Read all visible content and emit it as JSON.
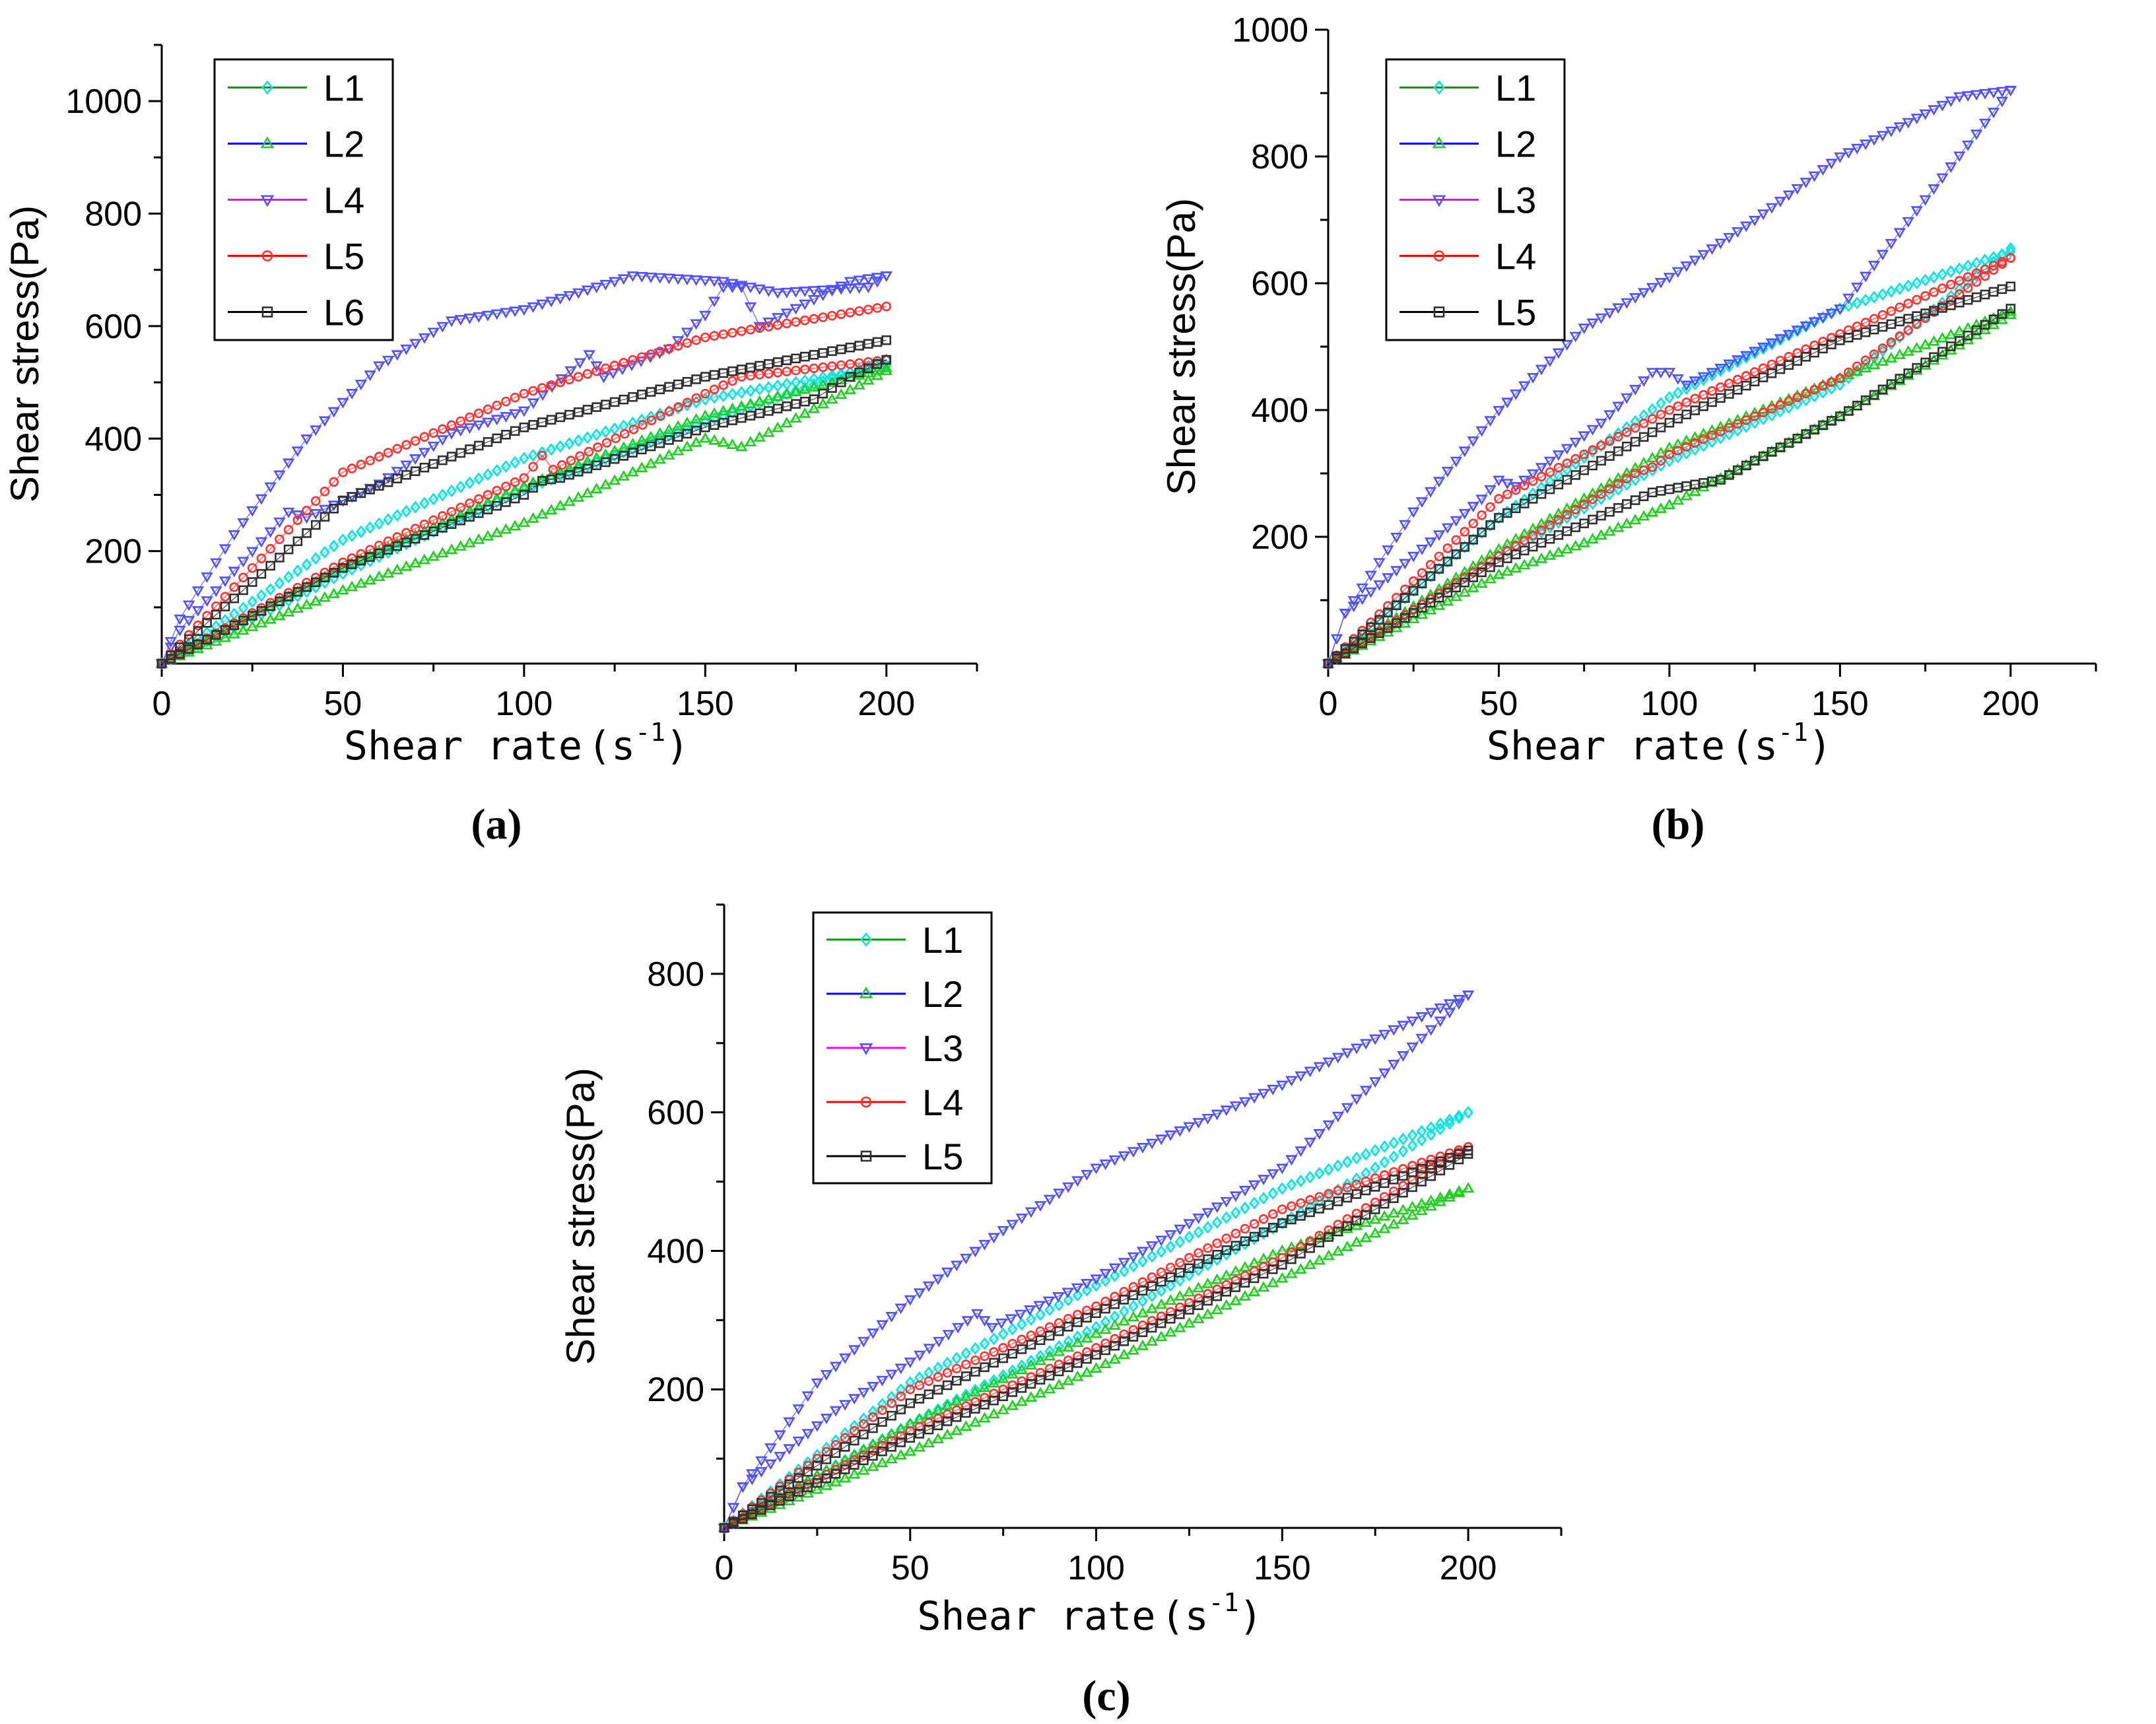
{
  "chart_data": [
    {
      "type": "line",
      "panel_label": "(a)",
      "xlabel": "Shear rate",
      "xlabel_unit": "(s",
      "xlabel_sup": "-1",
      "xlabel_close": ")",
      "ylabel": "Shear stress(Pa)",
      "xlim": [
        0,
        225
      ],
      "ylim": [
        0,
        1100
      ],
      "xticks": [
        0,
        50,
        100,
        150,
        200
      ],
      "yticks": [
        200,
        400,
        600,
        800,
        1000
      ],
      "x_tick_labels": [
        "0",
        "50",
        "100",
        "150",
        "200"
      ],
      "y_tick_labels": [
        "200",
        "400",
        "600",
        "800",
        "1000"
      ],
      "legend": [
        "L1",
        "L2",
        "L4",
        "L5",
        "L6"
      ],
      "series": [
        {
          "name": "L1",
          "color": "#00e5e5",
          "marker": "diamond",
          "line_color": "#00a000",
          "up": [
            [
              0,
              0
            ],
            [
              50,
              160
            ],
            [
              100,
              310
            ],
            [
              150,
              430
            ],
            [
              200,
              540
            ]
          ],
          "down": [
            [
              200,
              530
            ],
            [
              150,
              470
            ],
            [
              100,
              365
            ],
            [
              50,
              220
            ],
            [
              0,
              0
            ]
          ]
        },
        {
          "name": "L2",
          "color": "#1fcf1f",
          "marker": "triangle-up",
          "line_color": "#0000ff",
          "up": [
            [
              0,
              0
            ],
            [
              50,
              130
            ],
            [
              100,
              250
            ],
            [
              105,
              265
            ],
            [
              150,
              400
            ],
            [
              160,
              385
            ],
            [
              200,
              520
            ]
          ],
          "down": [
            [
              200,
              525
            ],
            [
              150,
              440
            ],
            [
              100,
              315
            ],
            [
              50,
              170
            ],
            [
              0,
              0
            ]
          ]
        },
        {
          "name": "L4",
          "color": "#5050ff",
          "marker": "triangle-down",
          "line_color": "#ff00ff",
          "up": [
            [
              0,
              0
            ],
            [
              5,
              60
            ],
            [
              35,
              270
            ],
            [
              40,
              260
            ],
            [
              60,
              320
            ],
            [
              80,
              410
            ],
            [
              85,
              420
            ],
            [
              95,
              440
            ],
            [
              100,
              450
            ],
            [
              118,
              550
            ],
            [
              122,
              510
            ],
            [
              140,
              560
            ],
            [
              150,
              620
            ],
            [
              155,
              670
            ],
            [
              160,
              670
            ],
            [
              165,
              600
            ],
            [
              190,
              680
            ],
            [
              200,
              690
            ]
          ],
          "down": [
            [
              200,
              690
            ],
            [
              195,
              670
            ],
            [
              170,
              660
            ],
            [
              155,
              680
            ],
            [
              130,
              690
            ],
            [
              100,
              630
            ],
            [
              80,
              610
            ],
            [
              60,
              530
            ],
            [
              40,
              400
            ],
            [
              20,
              230
            ],
            [
              5,
              80
            ],
            [
              0,
              0
            ]
          ]
        },
        {
          "name": "L5",
          "color": "#ff3030",
          "marker": "circle",
          "line_color": "#ff0000",
          "up": [
            [
              0,
              0
            ],
            [
              50,
              180
            ],
            [
              100,
              330
            ],
            [
              105,
              370
            ],
            [
              108,
              345
            ],
            [
              150,
              480
            ],
            [
              160,
              510
            ],
            [
              200,
              540
            ]
          ],
          "down": [
            [
              200,
              635
            ],
            [
              150,
              580
            ],
            [
              100,
              480
            ],
            [
              50,
              340
            ],
            [
              0,
              0
            ]
          ]
        },
        {
          "name": "L6",
          "color": "#303030",
          "marker": "square",
          "line_color": "#000000",
          "up": [
            [
              0,
              0
            ],
            [
              50,
              170
            ],
            [
              100,
              300
            ],
            [
              105,
              325
            ],
            [
              110,
              330
            ],
            [
              150,
              420
            ],
            [
              180,
              470
            ],
            [
              190,
              510
            ],
            [
              200,
              540
            ]
          ],
          "down": [
            [
              200,
              575
            ],
            [
              150,
              510
            ],
            [
              100,
              420
            ],
            [
              50,
              290
            ],
            [
              0,
              0
            ]
          ]
        }
      ]
    },
    {
      "type": "line",
      "panel_label": "(b)",
      "xlabel": "Shear rate",
      "xlabel_unit": "(s",
      "xlabel_sup": "-1",
      "xlabel_close": ")",
      "ylabel": "Shear stress(Pa)",
      "xlim": [
        0,
        225
      ],
      "ylim": [
        0,
        1000
      ],
      "xticks": [
        0,
        50,
        100,
        150,
        200
      ],
      "yticks": [
        200,
        400,
        600,
        800,
        1000
      ],
      "x_tick_labels": [
        "0",
        "50",
        "100",
        "150",
        "200"
      ],
      "y_tick_labels": [
        "200",
        "400",
        "600",
        "800",
        "1000"
      ],
      "legend": [
        "L1",
        "L2",
        "L3",
        "L4",
        "L5"
      ],
      "series": [
        {
          "name": "L1",
          "color": "#00e5e5",
          "marker": "diamond",
          "line_color": "#00a000",
          "up": [
            [
              0,
              0
            ],
            [
              50,
              170
            ],
            [
              100,
              320
            ],
            [
              125,
              380
            ],
            [
              150,
              440
            ],
            [
              200,
              655
            ]
          ],
          "down": [
            [
              200,
              650
            ],
            [
              150,
              560
            ],
            [
              100,
              420
            ],
            [
              50,
              230
            ],
            [
              0,
              0
            ]
          ]
        },
        {
          "name": "L2",
          "color": "#1fcf1f",
          "marker": "triangle-up",
          "line_color": "#0000ff",
          "up": [
            [
              0,
              0
            ],
            [
              50,
              140
            ],
            [
              75,
              190
            ],
            [
              100,
              250
            ],
            [
              150,
              390
            ],
            [
              200,
              550
            ]
          ],
          "down": [
            [
              200,
              555
            ],
            [
              150,
              450
            ],
            [
              100,
              340
            ],
            [
              50,
              180
            ],
            [
              0,
              0
            ]
          ]
        },
        {
          "name": "L3",
          "color": "#5050ff",
          "marker": "triangle-down",
          "line_color": "#ff00ff",
          "up": [
            [
              0,
              0
            ],
            [
              5,
              80
            ],
            [
              45,
              260
            ],
            [
              50,
              290
            ],
            [
              55,
              280
            ],
            [
              80,
              380
            ],
            [
              95,
              460
            ],
            [
              100,
              460
            ],
            [
              105,
              440
            ],
            [
              150,
              560
            ],
            [
              200,
              905
            ]
          ],
          "down": [
            [
              200,
              905
            ],
            [
              185,
              895
            ],
            [
              150,
              800
            ],
            [
              125,
              700
            ],
            [
              100,
              610
            ],
            [
              75,
              530
            ],
            [
              50,
              400
            ],
            [
              25,
              240
            ],
            [
              5,
              80
            ],
            [
              0,
              0
            ]
          ]
        },
        {
          "name": "L4",
          "color": "#ff3030",
          "marker": "circle",
          "line_color": "#ff0000",
          "up": [
            [
              0,
              0
            ],
            [
              50,
              170
            ],
            [
              90,
              300
            ],
            [
              95,
              310
            ],
            [
              100,
              330
            ],
            [
              150,
              450
            ],
            [
              200,
              640
            ]
          ],
          "down": [
            [
              200,
              640
            ],
            [
              150,
              520
            ],
            [
              100,
              400
            ],
            [
              50,
              260
            ],
            [
              0,
              0
            ]
          ]
        },
        {
          "name": "L5",
          "color": "#303030",
          "marker": "square",
          "line_color": "#000000",
          "up": [
            [
              0,
              0
            ],
            [
              50,
              160
            ],
            [
              95,
              270
            ],
            [
              105,
              280
            ],
            [
              115,
              290
            ],
            [
              125,
              320
            ],
            [
              150,
              390
            ],
            [
              200,
              560
            ]
          ],
          "down": [
            [
              200,
              595
            ],
            [
              150,
              510
            ],
            [
              100,
              380
            ],
            [
              50,
              230
            ],
            [
              0,
              0
            ]
          ]
        }
      ]
    },
    {
      "type": "line",
      "panel_label": "(c)",
      "xlabel": "Shear rate",
      "xlabel_unit": "(s",
      "xlabel_sup": "-1",
      "xlabel_close": ")",
      "ylabel": "Shear stress(Pa)",
      "xlim": [
        0,
        225
      ],
      "ylim": [
        0,
        900
      ],
      "xticks": [
        0,
        50,
        100,
        150,
        200
      ],
      "yticks": [
        200,
        400,
        600,
        800
      ],
      "x_tick_labels": [
        "0",
        "50",
        "100",
        "150",
        "200"
      ],
      "y_tick_labels": [
        "200",
        "400",
        "600",
        "800"
      ],
      "legend": [
        "L1",
        "L2",
        "L3",
        "L4",
        "L5"
      ],
      "series": [
        {
          "name": "L1",
          "color": "#00e5e5",
          "marker": "diamond",
          "line_color": "#00a000",
          "up": [
            [
              0,
              0
            ],
            [
              50,
              150
            ],
            [
              100,
              290
            ],
            [
              150,
              440
            ],
            [
              200,
              600
            ]
          ],
          "down": [
            [
              200,
              600
            ],
            [
              150,
              490
            ],
            [
              100,
              350
            ],
            [
              50,
              210
            ],
            [
              0,
              0
            ]
          ]
        },
        {
          "name": "L2",
          "color": "#1fcf1f",
          "marker": "triangle-up",
          "line_color": "#0000ff",
          "up": [
            [
              0,
              0
            ],
            [
              50,
              110
            ],
            [
              100,
              230
            ],
            [
              150,
              360
            ],
            [
              200,
              490
            ]
          ],
          "down": [
            [
              200,
              490
            ],
            [
              150,
              400
            ],
            [
              100,
              280
            ],
            [
              50,
              150
            ],
            [
              0,
              0
            ]
          ]
        },
        {
          "name": "L3",
          "color": "#5050ff",
          "marker": "triangle-down",
          "line_color": "#ff00ff",
          "up": [
            [
              0,
              0
            ],
            [
              5,
              60
            ],
            [
              30,
              170
            ],
            [
              50,
              240
            ],
            [
              68,
              310
            ],
            [
              72,
              290
            ],
            [
              100,
              360
            ],
            [
              150,
              520
            ],
            [
              200,
              770
            ]
          ],
          "down": [
            [
              200,
              770
            ],
            [
              180,
              720
            ],
            [
              150,
              640
            ],
            [
              100,
              520
            ],
            [
              75,
              430
            ],
            [
              50,
              330
            ],
            [
              25,
              210
            ],
            [
              5,
              60
            ],
            [
              0,
              0
            ]
          ]
        },
        {
          "name": "L4",
          "color": "#ff3030",
          "marker": "circle",
          "line_color": "#ff0000",
          "up": [
            [
              0,
              0
            ],
            [
              50,
              140
            ],
            [
              100,
              260
            ],
            [
              150,
              390
            ],
            [
              200,
              550
            ]
          ],
          "down": [
            [
              200,
              550
            ],
            [
              150,
              460
            ],
            [
              100,
              320
            ],
            [
              50,
              200
            ],
            [
              0,
              0
            ]
          ]
        },
        {
          "name": "L5",
          "color": "#303030",
          "marker": "square",
          "line_color": "#000000",
          "up": [
            [
              0,
              0
            ],
            [
              50,
              130
            ],
            [
              100,
              250
            ],
            [
              150,
              380
            ],
            [
              200,
              540
            ]
          ],
          "down": [
            [
              200,
              545
            ],
            [
              150,
              440
            ],
            [
              100,
              310
            ],
            [
              50,
              180
            ],
            [
              0,
              0
            ]
          ]
        }
      ]
    }
  ]
}
